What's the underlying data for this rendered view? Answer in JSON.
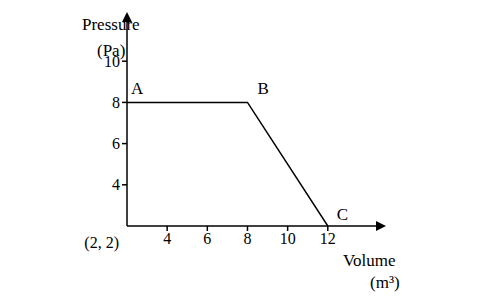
{
  "chart_data": {
    "type": "line",
    "x_label": "Volume (m³)",
    "y_label": "Pressure (Pa)",
    "x": [
      2,
      8,
      12
    ],
    "values": [
      8,
      8,
      2
    ],
    "point_labels": [
      "A",
      "B",
      "C"
    ],
    "color": "#000000",
    "xlim": [
      2,
      14.5
    ],
    "ylim": [
      2,
      12
    ],
    "xticks": [
      4,
      6,
      8,
      10,
      12
    ],
    "yticks": [
      4,
      6,
      8,
      10
    ],
    "annotations": [
      {
        "text": "(2, 2)",
        "x": 2,
        "y": 2
      }
    ]
  }
}
